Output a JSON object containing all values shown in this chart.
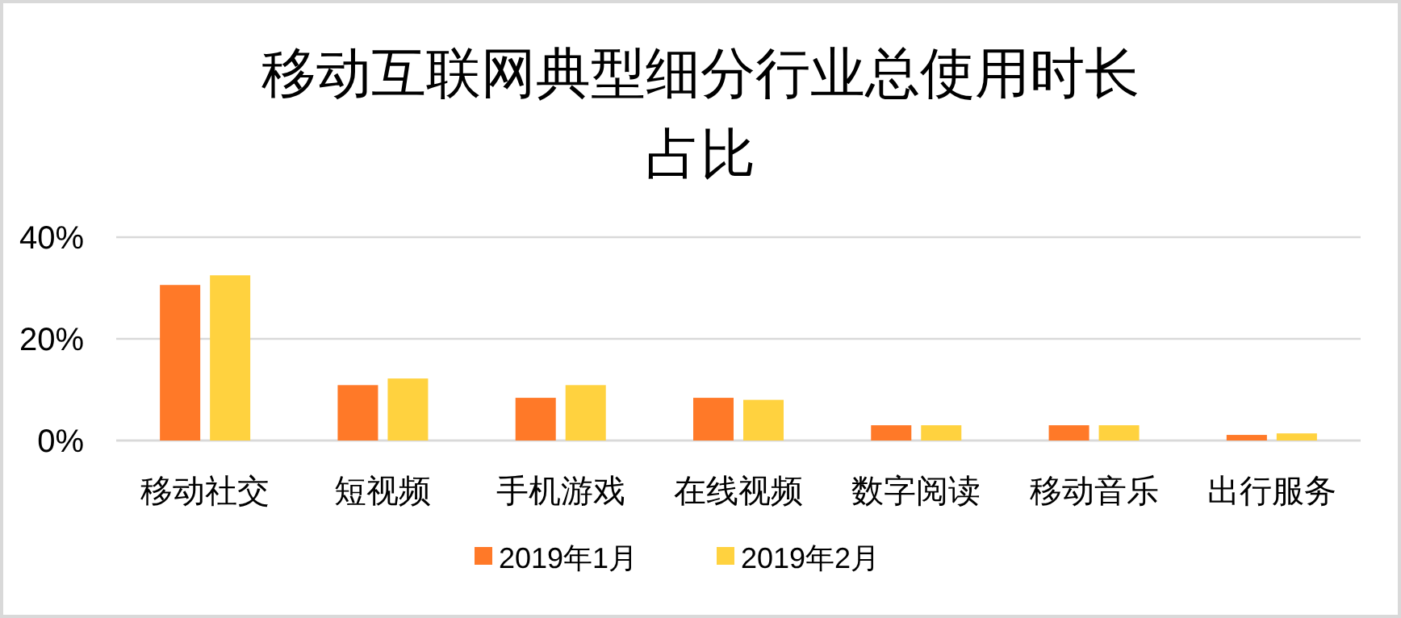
{
  "chart_data": {
    "type": "bar",
    "title": "移动互联网典型细分行业总使用时长占比",
    "categories": [
      "移动社交",
      "短视频",
      "手机游戏",
      "在线视频",
      "数字阅读",
      "移动音乐",
      "出行服务"
    ],
    "series": [
      {
        "name": "2019年1月",
        "color": "#ff7928",
        "values": [
          30.6,
          10.9,
          8.4,
          8.4,
          3.0,
          3.0,
          1.1
        ]
      },
      {
        "name": "2019年2月",
        "color": "#ffd23f",
        "values": [
          32.5,
          12.2,
          10.9,
          8.0,
          3.0,
          3.0,
          1.4
        ]
      }
    ],
    "ylim": [
      0,
      40
    ],
    "yticks": [
      {
        "value": 0,
        "label": "0%"
      },
      {
        "value": 20,
        "label": "20%"
      },
      {
        "value": 40,
        "label": "40%"
      }
    ],
    "grid": "y",
    "legend": "bottom"
  }
}
